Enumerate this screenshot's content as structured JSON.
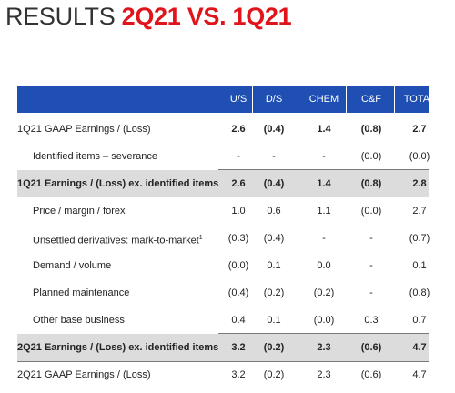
{
  "title": {
    "prefix": "RESULTS ",
    "highlight": "2Q21 VS. 1Q21"
  },
  "columns": [
    "U/S",
    "D/S",
    "CHEM",
    "C&F",
    "TOTAL"
  ],
  "rows": [
    {
      "label": "1Q21 GAAP Earnings / (Loss)",
      "values": [
        "2.6",
        "(0.4)",
        "1.4",
        "(0.8)",
        "2.7"
      ],
      "bold_values": true
    },
    {
      "label": "Identified items – severance",
      "values": [
        "-",
        "-",
        "-",
        "(0.0)",
        "(0.0)"
      ],
      "indent": true
    },
    {
      "label": "1Q21 Earnings / (Loss) ex. identified items",
      "values": [
        "2.6",
        "(0.4)",
        "1.4",
        "(0.8)",
        "2.8"
      ],
      "bold": true,
      "shaded": true
    },
    {
      "label": "Price / margin / forex",
      "values": [
        "1.0",
        "0.6",
        "1.1",
        "(0.0)",
        "2.7"
      ],
      "indent": true
    },
    {
      "label": "Unsettled derivatives: mark-to-market",
      "sup": "1",
      "values": [
        "(0.3)",
        "(0.4)",
        "-",
        "-",
        "(0.7)"
      ],
      "indent": true
    },
    {
      "label": "Demand / volume",
      "values": [
        "(0.0)",
        "0.1",
        "0.0",
        "-",
        "0.1"
      ],
      "indent": true
    },
    {
      "label": "Planned maintenance",
      "values": [
        "(0.4)",
        "(0.2)",
        "(0.2)",
        "-",
        "(0.8)"
      ],
      "indent": true
    },
    {
      "label": "Other base business",
      "values": [
        "0.4",
        "0.1",
        "(0.0)",
        "0.3",
        "0.7"
      ],
      "indent": true
    },
    {
      "label": "2Q21 Earnings / (Loss) ex. identified items",
      "values": [
        "3.2",
        "(0.2)",
        "2.3",
        "(0.6)",
        "4.7"
      ],
      "bold": true,
      "shaded": true
    },
    {
      "label": "2Q21 GAAP Earnings / (Loss)",
      "values": [
        "3.2",
        "(0.2)",
        "2.3",
        "(0.6)",
        "4.7"
      ]
    }
  ],
  "colors": {
    "header_bg": "#1f4fb3",
    "title_highlight": "#e0151b",
    "shaded_row": "#dcdcdc"
  }
}
